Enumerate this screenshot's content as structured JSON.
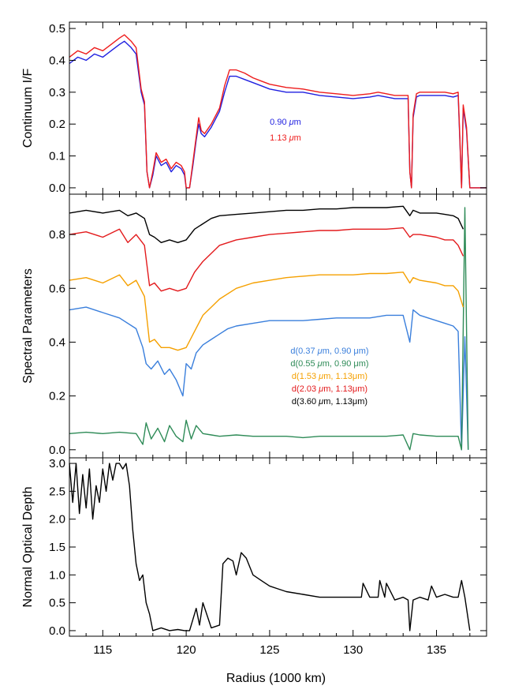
{
  "figure": {
    "xlabel": "Radius (1000 km)",
    "xlim": [
      113,
      138
    ],
    "xticks": [
      115,
      120,
      125,
      130,
      135
    ]
  },
  "chart_data": [
    {
      "type": "line",
      "ylabel": "Continuum I/F",
      "ylim": [
        -0.02,
        0.52
      ],
      "yticks": [
        0.0,
        0.1,
        0.2,
        0.3,
        0.4,
        0.5
      ],
      "yticklabels": [
        "0.0",
        "0.1",
        "0.2",
        "0.3",
        "0.4",
        "0.5"
      ],
      "legend": [
        {
          "prefix": "0.90 ",
          "mu": "μ",
          "suffix": "m",
          "color": "#1f1fe0"
        },
        {
          "prefix": "1.13 ",
          "mu": "μ",
          "suffix": "m",
          "color": "#ee1c1c"
        }
      ],
      "series": [
        {
          "name": "0.90 μm",
          "color": "#1f1fe0",
          "x": [
            113,
            113.5,
            114,
            114.5,
            115,
            115.5,
            116,
            116.3,
            116.7,
            117,
            117.3,
            117.5,
            117.65,
            117.8,
            118,
            118.2,
            118.5,
            118.8,
            119.1,
            119.4,
            119.7,
            119.9,
            120.0,
            120.2,
            120.4,
            120.6,
            120.75,
            120.9,
            121.1,
            121.5,
            122,
            122.3,
            122.6,
            123,
            123.5,
            124,
            124.5,
            125,
            126,
            127,
            128,
            129,
            130,
            131,
            131.5,
            132,
            132.5,
            133,
            133.3,
            133.4,
            133.5,
            133.6,
            133.8,
            134,
            134.5,
            135,
            135.5,
            136,
            136.3,
            136.4,
            136.5,
            136.6,
            136.8,
            137,
            137.5,
            138
          ],
          "y": [
            0.39,
            0.41,
            0.4,
            0.42,
            0.41,
            0.43,
            0.45,
            0.46,
            0.44,
            0.42,
            0.3,
            0.26,
            0.05,
            0.0,
            0.04,
            0.1,
            0.07,
            0.08,
            0.05,
            0.07,
            0.06,
            0.04,
            0.0,
            0.0,
            0.07,
            0.15,
            0.2,
            0.17,
            0.16,
            0.19,
            0.24,
            0.3,
            0.35,
            0.35,
            0.34,
            0.33,
            0.32,
            0.31,
            0.3,
            0.3,
            0.29,
            0.285,
            0.28,
            0.285,
            0.29,
            0.285,
            0.28,
            0.28,
            0.28,
            0.05,
            0.0,
            0.22,
            0.285,
            0.29,
            0.29,
            0.29,
            0.29,
            0.285,
            0.29,
            0.15,
            0.0,
            0.25,
            0.18,
            0.0,
            0.0,
            0.0
          ]
        },
        {
          "name": "1.13 μm",
          "color": "#ee1c1c",
          "x": [
            113,
            113.5,
            114,
            114.5,
            115,
            115.5,
            116,
            116.3,
            116.7,
            117,
            117.3,
            117.5,
            117.65,
            117.8,
            118,
            118.2,
            118.5,
            118.8,
            119.1,
            119.4,
            119.7,
            119.9,
            120.0,
            120.2,
            120.4,
            120.6,
            120.75,
            120.9,
            121.1,
            121.5,
            122,
            122.3,
            122.6,
            123,
            123.5,
            124,
            124.5,
            125,
            126,
            127,
            128,
            129,
            130,
            131,
            131.5,
            132,
            132.5,
            133,
            133.3,
            133.4,
            133.5,
            133.6,
            133.8,
            134,
            134.5,
            135,
            135.5,
            136,
            136.3,
            136.4,
            136.5,
            136.6,
            136.8,
            137,
            137.5,
            138
          ],
          "y": [
            0.41,
            0.43,
            0.42,
            0.44,
            0.43,
            0.45,
            0.47,
            0.48,
            0.46,
            0.44,
            0.31,
            0.27,
            0.05,
            0.0,
            0.05,
            0.11,
            0.08,
            0.09,
            0.06,
            0.08,
            0.07,
            0.05,
            0.0,
            0.0,
            0.08,
            0.16,
            0.22,
            0.18,
            0.17,
            0.2,
            0.25,
            0.32,
            0.37,
            0.37,
            0.36,
            0.345,
            0.335,
            0.325,
            0.315,
            0.31,
            0.3,
            0.295,
            0.29,
            0.295,
            0.3,
            0.295,
            0.29,
            0.29,
            0.29,
            0.05,
            0.0,
            0.23,
            0.295,
            0.3,
            0.3,
            0.3,
            0.3,
            0.295,
            0.3,
            0.16,
            0.0,
            0.26,
            0.19,
            0.0,
            0.0,
            0.0
          ]
        }
      ]
    },
    {
      "type": "line",
      "ylabel": "Spectral Parameters",
      "ylim": [
        -0.03,
        0.95
      ],
      "yticks": [
        0.0,
        0.2,
        0.4,
        0.6,
        0.8
      ],
      "yticklabels": [
        "0.0",
        "0.2",
        "0.4",
        "0.6",
        "0.8"
      ],
      "legend": [
        {
          "prefix": "d(0.37 ",
          "mu": "μ",
          "suffix": "m, 0.90 μm)",
          "color": "#3a7fdc"
        },
        {
          "prefix": "d(0.55 ",
          "mu": "μ",
          "suffix": "m, 0.90 μm)",
          "color": "#2e8b57"
        },
        {
          "prefix": "d(1.53 ",
          "mu": "μ",
          "suffix": "m, 1.13μm)",
          "color": "#f5a000"
        },
        {
          "prefix": "d(2.03 ",
          "mu": "μ",
          "suffix": "m, 1.13μm)",
          "color": "#e31a1c"
        },
        {
          "prefix": "d(3.60 ",
          "mu": "μ",
          "suffix": "m, 1.13μm)",
          "color": "#000000"
        }
      ],
      "series": [
        {
          "name": "d(0.37 μm, 0.90 μm)",
          "color": "#3a7fdc",
          "x": [
            113,
            114,
            115,
            116,
            117,
            117.4,
            117.6,
            117.9,
            118.3,
            118.7,
            119.0,
            119.4,
            119.8,
            120.0,
            120.3,
            120.6,
            121.0,
            121.5,
            122,
            122.5,
            123,
            124,
            125,
            126,
            127,
            128,
            129,
            130,
            131,
            132,
            133,
            133.4,
            133.6,
            134,
            134.5,
            135,
            135.5,
            136,
            136.3,
            136.5,
            136.7,
            136.9
          ],
          "y": [
            0.52,
            0.53,
            0.51,
            0.49,
            0.45,
            0.38,
            0.32,
            0.3,
            0.33,
            0.28,
            0.3,
            0.26,
            0.2,
            0.32,
            0.3,
            0.36,
            0.39,
            0.41,
            0.43,
            0.45,
            0.46,
            0.47,
            0.48,
            0.48,
            0.48,
            0.485,
            0.49,
            0.49,
            0.49,
            0.5,
            0.5,
            0.4,
            0.52,
            0.5,
            0.49,
            0.48,
            0.47,
            0.46,
            0.44,
            0.0,
            0.42,
            0.0
          ]
        },
        {
          "name": "d(0.55 μm, 0.90 μm)",
          "color": "#2e8b57",
          "x": [
            113,
            114,
            115,
            116,
            117,
            117.4,
            117.6,
            117.9,
            118.3,
            118.7,
            119.0,
            119.4,
            119.8,
            120.0,
            120.3,
            120.6,
            121.0,
            121.5,
            122,
            123,
            124,
            125,
            126,
            127,
            128,
            129,
            130,
            131,
            132,
            133,
            133.4,
            133.6,
            134,
            135,
            136,
            136.3,
            136.5,
            136.7,
            136.9
          ],
          "y": [
            0.06,
            0.065,
            0.06,
            0.065,
            0.06,
            0.02,
            0.1,
            0.04,
            0.08,
            0.03,
            0.09,
            0.05,
            0.03,
            0.11,
            0.04,
            0.09,
            0.06,
            0.055,
            0.05,
            0.055,
            0.05,
            0.05,
            0.05,
            0.045,
            0.05,
            0.05,
            0.05,
            0.05,
            0.05,
            0.055,
            0.0,
            0.06,
            0.055,
            0.05,
            0.05,
            0.05,
            0.0,
            0.9,
            0.0
          ]
        },
        {
          "name": "d(1.53 μm, 1.13 μm)",
          "color": "#f5a000",
          "x": [
            113,
            114,
            115,
            116,
            116.5,
            117,
            117.5,
            117.8,
            118.1,
            118.5,
            119.0,
            119.5,
            120.0,
            120.5,
            121,
            121.5,
            122,
            123,
            124,
            125,
            126,
            127,
            128,
            129,
            130,
            131,
            132,
            133,
            133.4,
            133.6,
            134,
            135,
            135.5,
            136,
            136.3,
            136.6
          ],
          "y": [
            0.63,
            0.64,
            0.62,
            0.65,
            0.61,
            0.63,
            0.57,
            0.4,
            0.41,
            0.38,
            0.38,
            0.37,
            0.38,
            0.44,
            0.5,
            0.53,
            0.56,
            0.6,
            0.62,
            0.63,
            0.64,
            0.645,
            0.65,
            0.65,
            0.65,
            0.655,
            0.655,
            0.66,
            0.62,
            0.64,
            0.63,
            0.62,
            0.61,
            0.61,
            0.59,
            0.53
          ]
        },
        {
          "name": "d(2.03 μm, 1.13 μm)",
          "color": "#e31a1c",
          "x": [
            113,
            114,
            115,
            116,
            116.5,
            117,
            117.5,
            117.8,
            118.1,
            118.5,
            119.0,
            119.5,
            120.0,
            120.5,
            121,
            121.5,
            122,
            123,
            124,
            125,
            126,
            127,
            128,
            129,
            130,
            131,
            132,
            133,
            133.4,
            133.6,
            134,
            135,
            135.5,
            136,
            136.3,
            136.6
          ],
          "y": [
            0.8,
            0.81,
            0.79,
            0.82,
            0.77,
            0.8,
            0.76,
            0.61,
            0.62,
            0.59,
            0.6,
            0.59,
            0.6,
            0.66,
            0.7,
            0.73,
            0.76,
            0.78,
            0.79,
            0.8,
            0.805,
            0.81,
            0.815,
            0.815,
            0.82,
            0.82,
            0.82,
            0.825,
            0.79,
            0.8,
            0.8,
            0.79,
            0.78,
            0.78,
            0.76,
            0.72
          ]
        },
        {
          "name": "d(3.60 μm, 1.13 μm)",
          "color": "#000000",
          "x": [
            113,
            114,
            115,
            116,
            116.5,
            117,
            117.5,
            117.8,
            118.1,
            118.5,
            119.0,
            119.5,
            120.0,
            120.5,
            121,
            121.5,
            122,
            123,
            124,
            125,
            126,
            127,
            128,
            129,
            130,
            131,
            132,
            133,
            133.4,
            133.6,
            134,
            135,
            135.5,
            136,
            136.3,
            136.6
          ],
          "y": [
            0.88,
            0.89,
            0.88,
            0.89,
            0.87,
            0.88,
            0.86,
            0.8,
            0.79,
            0.77,
            0.78,
            0.77,
            0.78,
            0.82,
            0.84,
            0.86,
            0.87,
            0.875,
            0.88,
            0.885,
            0.89,
            0.89,
            0.895,
            0.895,
            0.9,
            0.9,
            0.9,
            0.905,
            0.87,
            0.89,
            0.88,
            0.88,
            0.875,
            0.87,
            0.86,
            0.82
          ]
        }
      ]
    },
    {
      "type": "line",
      "ylabel": "Normal Optical Depth",
      "ylim": [
        -0.1,
        3.1
      ],
      "yticks": [
        0.0,
        0.5,
        1.0,
        1.5,
        2.0,
        2.5,
        3.0
      ],
      "yticklabels": [
        "0.0",
        "0.5",
        "1.0",
        "1.5",
        "2.0",
        "2.5",
        "3.0"
      ],
      "legend": [],
      "series": [
        {
          "name": "",
          "color": "#000000",
          "x": [
            113,
            113.2,
            113.4,
            113.6,
            113.8,
            114.0,
            114.2,
            114.4,
            114.6,
            114.8,
            115.0,
            115.2,
            115.4,
            115.6,
            115.8,
            116.0,
            116.2,
            116.4,
            116.6,
            116.8,
            117.0,
            117.2,
            117.4,
            117.6,
            117.8,
            118.0,
            118.5,
            119.0,
            119.5,
            119.9,
            120.0,
            120.2,
            120.4,
            120.6,
            120.8,
            121.0,
            121.5,
            122.0,
            122.2,
            122.5,
            122.8,
            123.0,
            123.3,
            123.6,
            124.0,
            124.5,
            125.0,
            125.5,
            126,
            127,
            128,
            129,
            130,
            130.5,
            130.6,
            131,
            131.5,
            131.6,
            131.9,
            132.0,
            132.5,
            133,
            133.3,
            133.4,
            133.6,
            134,
            134.5,
            134.7,
            135,
            135.5,
            136,
            136.3,
            136.5,
            136.7,
            137
          ],
          "y": [
            3.0,
            2.3,
            3.0,
            2.1,
            2.8,
            2.2,
            2.9,
            2.0,
            2.6,
            2.3,
            2.9,
            2.5,
            3.0,
            2.7,
            3.0,
            3.0,
            2.9,
            3.0,
            2.6,
            1.8,
            1.2,
            0.9,
            1.0,
            0.5,
            0.3,
            0.0,
            0.05,
            0.0,
            0.02,
            0.0,
            0.0,
            0.0,
            0.2,
            0.4,
            0.1,
            0.5,
            0.05,
            0.1,
            1.2,
            1.3,
            1.25,
            1.0,
            1.4,
            1.3,
            1.0,
            0.9,
            0.8,
            0.75,
            0.7,
            0.65,
            0.6,
            0.6,
            0.6,
            0.6,
            0.85,
            0.6,
            0.6,
            0.9,
            0.6,
            0.85,
            0.55,
            0.6,
            0.55,
            0.0,
            0.55,
            0.6,
            0.55,
            0.8,
            0.6,
            0.65,
            0.6,
            0.6,
            0.9,
            0.6,
            0.0
          ]
        }
      ]
    }
  ]
}
